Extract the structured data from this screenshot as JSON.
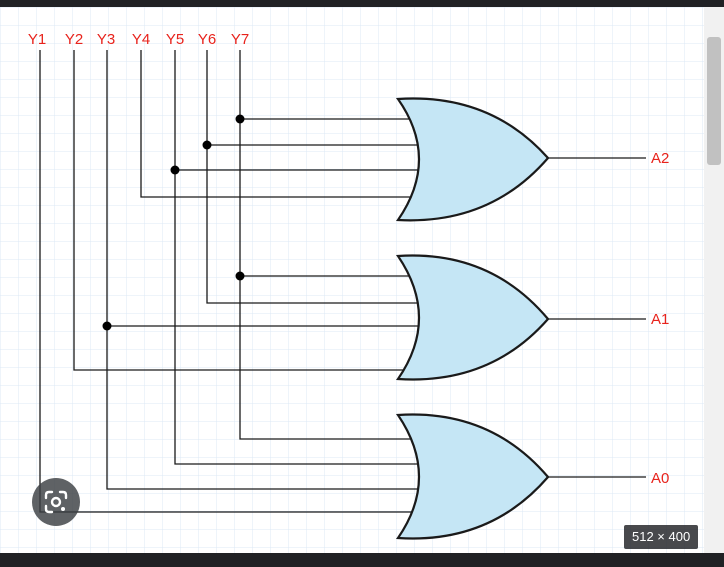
{
  "diagram": {
    "inputs": [
      "Y1",
      "Y2",
      "Y3",
      "Y4",
      "Y5",
      "Y6",
      "Y7"
    ],
    "outputs": [
      "A2",
      "A1",
      "A0"
    ],
    "gates": [
      {
        "type": "OR",
        "output": "A2",
        "inputs": [
          "Y7",
          "Y6",
          "Y5",
          "Y4"
        ]
      },
      {
        "type": "OR",
        "output": "A1",
        "inputs": [
          "Y7",
          "Y6",
          "Y3",
          "Y2"
        ]
      },
      {
        "type": "OR",
        "output": "A0",
        "inputs": [
          "Y7",
          "Y5",
          "Y3",
          "Y1"
        ]
      }
    ],
    "colors": {
      "label": "#e8231c",
      "gate_fill": "#c5e6f5",
      "wire": "#1a1a1a"
    }
  },
  "overlay": {
    "dimensions": "512 × 400",
    "lens_icon": "google-lens-icon"
  }
}
